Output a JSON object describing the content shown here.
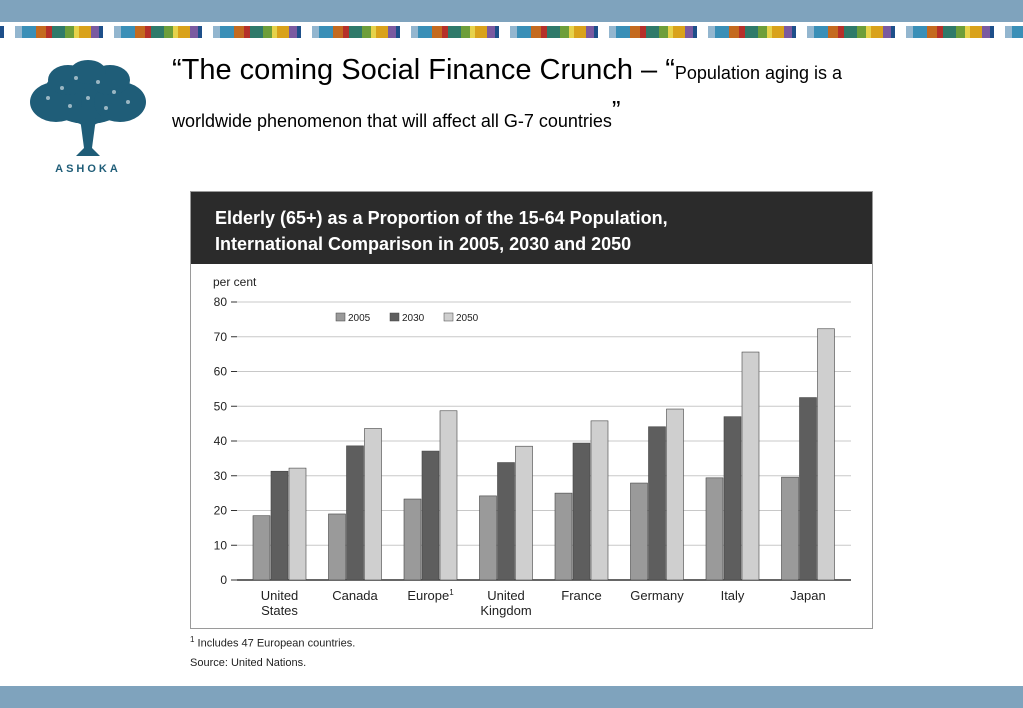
{
  "slide": {
    "title_main": "“The coming Social Finance Crunch – “",
    "title_small": "Population aging is a",
    "title_line2": "worldwide phenomenon that will affect all G-7 countries",
    "title_close_quote": "”",
    "logo_text": "ASHOKA",
    "colors": {
      "band": "#7fa3bd",
      "logo": "#1f5d78"
    }
  },
  "chart_data": {
    "type": "bar",
    "title": "Elderly (65+) as a Proportion of the 15-64 Population, International Comparison in 2005, 2030 and 2050",
    "title_lines": [
      "Elderly (65+) as a Proportion of the 15-64 Population,",
      "International Comparison in 2005, 2030 and 2050"
    ],
    "ylabel": "per cent",
    "xlabel": "",
    "ylim": [
      0,
      80
    ],
    "yticks": [
      0,
      10,
      20,
      30,
      40,
      50,
      60,
      70,
      80
    ],
    "grid": true,
    "legend_position": "top",
    "categories": [
      [
        "United",
        "States"
      ],
      [
        "Canada"
      ],
      [
        "Europe"
      ],
      [
        "United",
        "Kingdom"
      ],
      [
        "France"
      ],
      [
        "Germany"
      ],
      [
        "Italy"
      ],
      [
        "Japan"
      ]
    ],
    "category_superscripts": [
      "",
      "",
      "1",
      "",
      "",
      "",
      "",
      ""
    ],
    "series": [
      {
        "name": "2005",
        "color": "#9a9a9a",
        "values": [
          18.5,
          19,
          23.3,
          24.2,
          25,
          27.9,
          29.4,
          29.6
        ]
      },
      {
        "name": "2030",
        "color": "#5e5e5e",
        "values": [
          31.3,
          38.6,
          37.1,
          33.8,
          39.4,
          44.1,
          47,
          52.5
        ]
      },
      {
        "name": "2050",
        "color": "#cfcfcf",
        "values": [
          32.2,
          43.6,
          48.7,
          38.5,
          45.8,
          49.2,
          65.6,
          72.3
        ]
      }
    ],
    "footnote": "Includes 47 European countries.",
    "footnote_mark": "1",
    "source": "Source: United Nations."
  }
}
